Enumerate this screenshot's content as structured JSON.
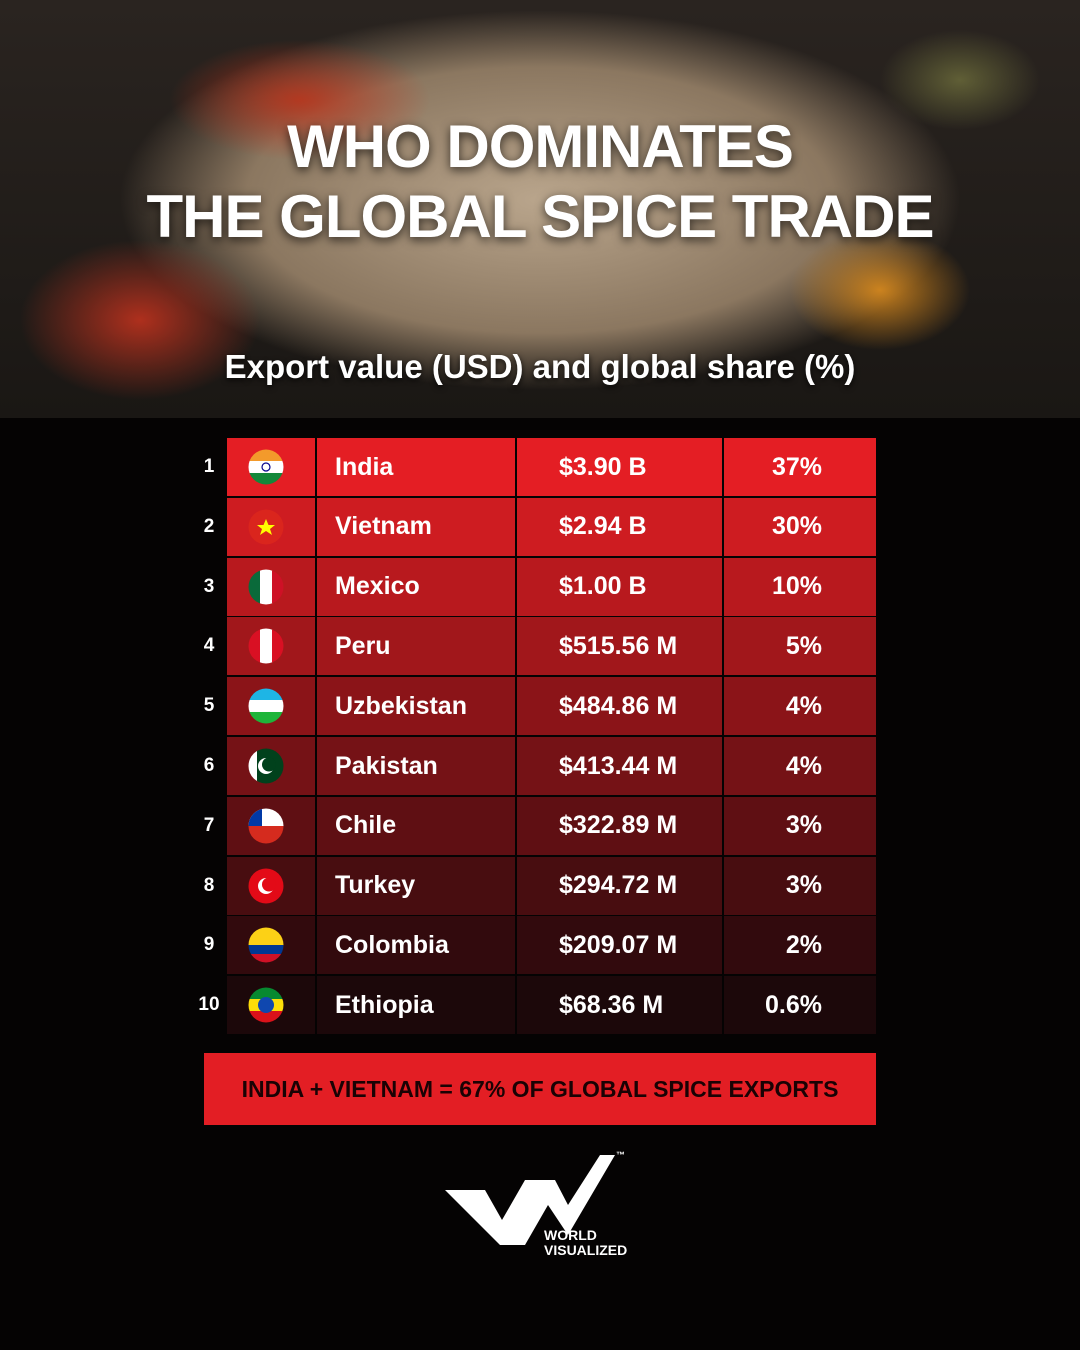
{
  "header": {
    "title_lines": [
      "WHO DOMINATES",
      "THE GLOBAL SPICE TRADE"
    ],
    "subtitle": "Export value (USD) and global share (%)"
  },
  "table": {
    "rows": [
      [
        "1",
        "India",
        "$3.90 B",
        "37%"
      ],
      [
        "2",
        "Vietnam",
        "$2.94 B",
        "30%"
      ],
      [
        "3",
        "Mexico",
        "$1.00 B",
        "10%"
      ],
      [
        "4",
        "Peru",
        "$515.56 M",
        "5%"
      ],
      [
        "5",
        "Uzbekistan",
        "$484.86 M",
        "4%"
      ],
      [
        "6",
        "Pakistan",
        "$413.44 M",
        "4%"
      ],
      [
        "7",
        "Chile",
        "$322.89 M",
        "3%"
      ],
      [
        "8",
        "Turkey",
        "$294.72 M",
        "3%"
      ],
      [
        "9",
        "Colombia",
        "$209.07 M",
        "2%"
      ],
      [
        "10",
        "Ethiopia",
        "$68.36 M",
        "0.6%"
      ]
    ]
  },
  "banner": "INDIA + VIETNAM = 67% OF GLOBAL SPICE EXPORTS",
  "logo": {
    "line1": "WORLD",
    "line2": "VISUALIZED",
    "mark": "™"
  }
}
